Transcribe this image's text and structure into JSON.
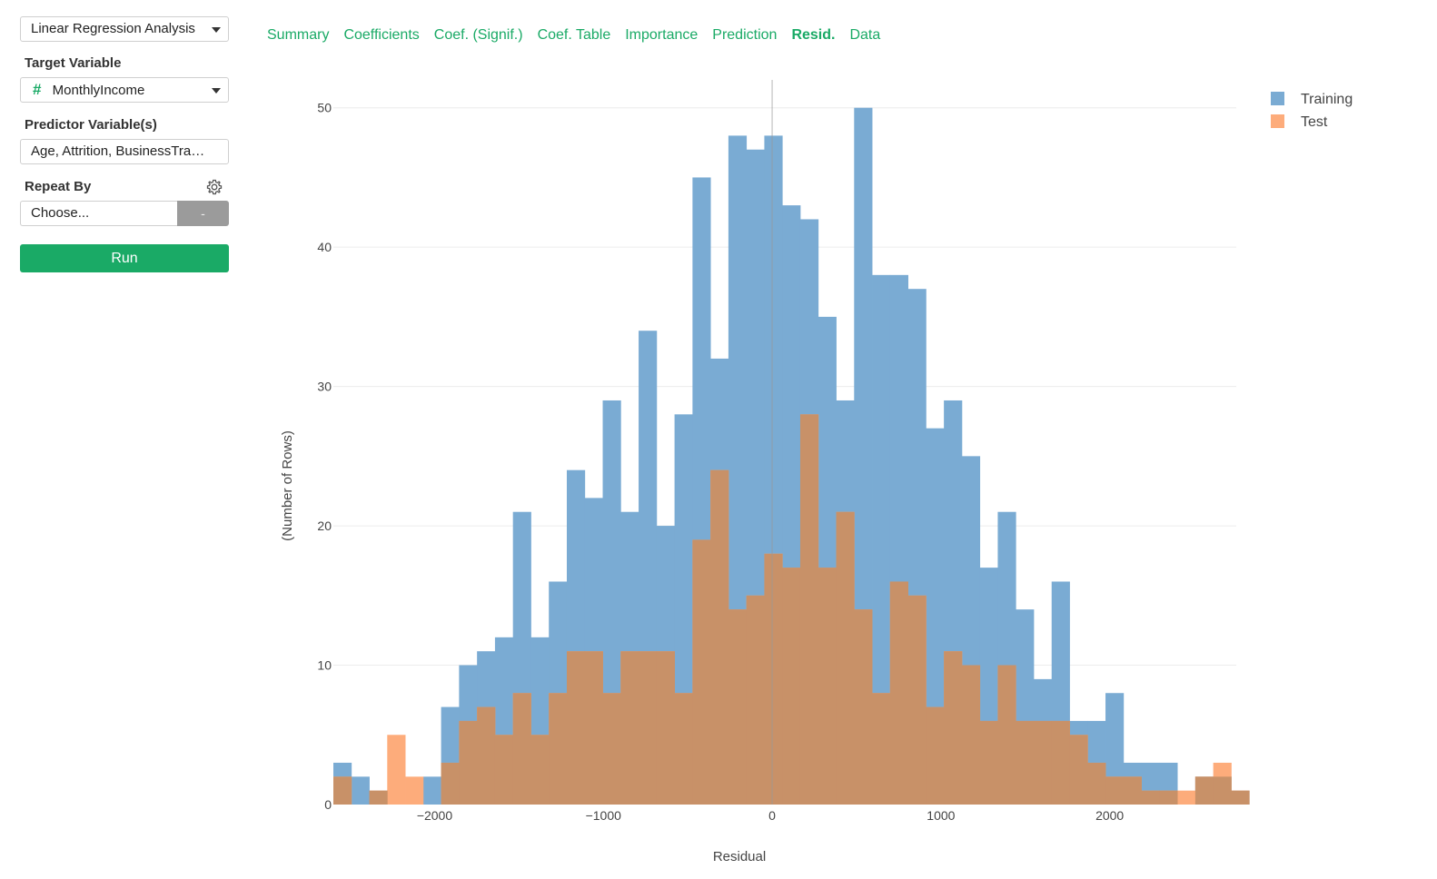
{
  "sidebar": {
    "analysis_select": "Linear Regression Analysis",
    "target_label": "Target Variable",
    "target_value": "MonthlyIncome",
    "target_type_icon": "#",
    "predictor_label": "Predictor Variable(s)",
    "predictor_value": "Age, Attrition, BusinessTra…",
    "repeat_label": "Repeat By",
    "repeat_value": "Choose...",
    "repeat_button": "-",
    "run_label": "Run"
  },
  "tabs": [
    {
      "label": "Summary",
      "active": false
    },
    {
      "label": "Coefficients",
      "active": false
    },
    {
      "label": "Coef. (Signif.)",
      "active": false
    },
    {
      "label": "Coef. Table",
      "active": false
    },
    {
      "label": "Importance",
      "active": false
    },
    {
      "label": "Prediction",
      "active": false
    },
    {
      "label": "Resid.",
      "active": true
    },
    {
      "label": "Data",
      "active": false
    }
  ],
  "colors": {
    "accent": "#1aaa66",
    "training": "#7aabd3",
    "test": "#fdac7b",
    "overlap": "#c89168"
  },
  "chart_data": {
    "type": "histogram",
    "xlabel": "Residual",
    "ylabel": "(Number of Rows)",
    "xlim": [
      -2600,
      2750
    ],
    "ylim": [
      0,
      52
    ],
    "bin_start": -2600,
    "bin_width": 106.4,
    "x_ticks": [
      -2000,
      -1000,
      0,
      1000,
      2000
    ],
    "x_tick_labels": [
      "−2000",
      "−1000",
      "0",
      "1000",
      "2000"
    ],
    "y_ticks": [
      0,
      10,
      20,
      30,
      40,
      50
    ],
    "vertical_line_x": 0,
    "legend_position": "top-right",
    "series": [
      {
        "name": "Training",
        "values": [
          3,
          2,
          1,
          0,
          0,
          2,
          7,
          10,
          11,
          12,
          21,
          12,
          16,
          24,
          22,
          29,
          21,
          34,
          20,
          28,
          45,
          32,
          48,
          47,
          48,
          43,
          42,
          35,
          29,
          50,
          38,
          38,
          37,
          27,
          29,
          25,
          17,
          21,
          14,
          9,
          16,
          6,
          6,
          8,
          3,
          3,
          3,
          0,
          2,
          2,
          1
        ]
      },
      {
        "name": "Test",
        "values": [
          2,
          0,
          1,
          5,
          2,
          0,
          3,
          6,
          7,
          5,
          8,
          5,
          8,
          11,
          11,
          8,
          11,
          11,
          11,
          8,
          19,
          24,
          14,
          15,
          18,
          17,
          28,
          17,
          21,
          14,
          8,
          16,
          15,
          7,
          11,
          10,
          6,
          10,
          6,
          6,
          6,
          5,
          3,
          2,
          2,
          1,
          1,
          1,
          2,
          3,
          1
        ]
      }
    ]
  }
}
